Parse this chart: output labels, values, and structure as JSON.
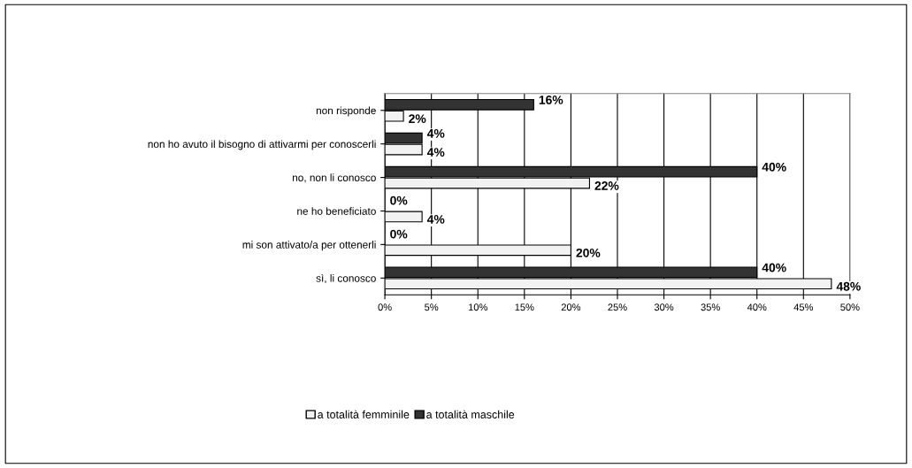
{
  "chart_data": {
    "type": "bar",
    "orientation": "horizontal",
    "categories": [
      "non risponde",
      "non ho avuto il bisogno di attivarmi per conoscerli",
      "no, non li conosco",
      "ne ho beneficiato",
      "mi son attivato/a per ottenerli",
      "sì, li conosco"
    ],
    "series": [
      {
        "name": "a totalità maschile",
        "color": "#333333",
        "values": [
          16,
          4,
          40,
          0,
          0,
          40
        ],
        "value_labels": [
          "16%",
          "4%",
          "40%",
          "0%",
          "0%",
          "40%"
        ]
      },
      {
        "name": "a totalità femminile",
        "color": "#f2f2f2",
        "values": [
          2,
          4,
          22,
          4,
          20,
          48
        ],
        "value_labels": [
          "2%",
          "4%",
          "22%",
          "4%",
          "20%",
          "48%"
        ]
      }
    ],
    "xlim": [
      0,
      50
    ],
    "xticks": [
      {
        "value": 0,
        "label": "0%"
      },
      {
        "value": 5,
        "label": "5%"
      },
      {
        "value": 10,
        "label": "10%"
      },
      {
        "value": 15,
        "label": "15%"
      },
      {
        "value": 20,
        "label": "20%"
      },
      {
        "value": 25,
        "label": "25%"
      },
      {
        "value": 30,
        "label": "30%"
      },
      {
        "value": 35,
        "label": "35%"
      },
      {
        "value": 40,
        "label": "40%"
      },
      {
        "value": 45,
        "label": "45%"
      },
      {
        "value": 50,
        "label": "50%"
      }
    ],
    "grid": "x",
    "legend": "bottom"
  }
}
